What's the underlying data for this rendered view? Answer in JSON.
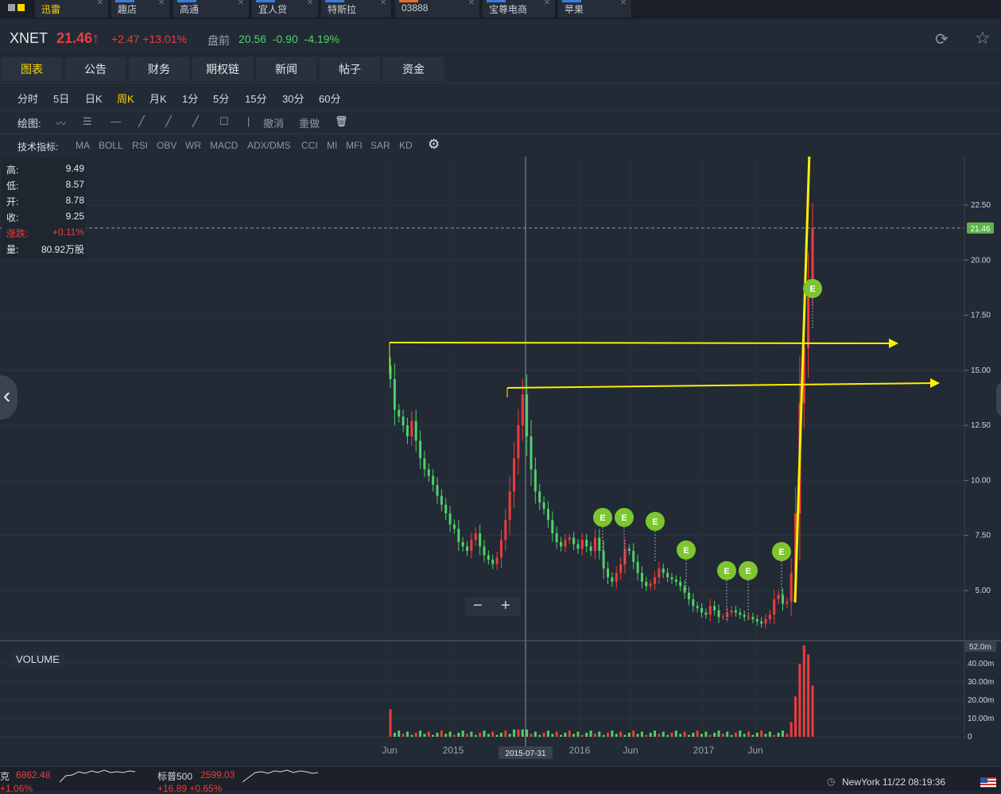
{
  "tabs": [
    {
      "label": "迅雷",
      "active": true
    },
    {
      "label": "趣店"
    },
    {
      "label": "高通"
    },
    {
      "label": "宜人贷"
    },
    {
      "label": "特斯拉"
    },
    {
      "label": "03888"
    },
    {
      "label": "宝尊电商"
    },
    {
      "label": "苹果"
    }
  ],
  "quote": {
    "symbol": "XNET",
    "price": "21.46",
    "price_arrow": "↑",
    "change": "+2.47 +13.01%",
    "premarket_label": "盘前",
    "premarket_price": "20.56",
    "premarket_change": "-0.90",
    "premarket_pct": "-4.19%"
  },
  "main_tabs": [
    "图表",
    "公告",
    "财务",
    "期权链",
    "新闻",
    "帖子",
    "资金"
  ],
  "periods": [
    "分时",
    "5日",
    "日K",
    "周K",
    "月K",
    "1分",
    "5分",
    "15分",
    "30分",
    "60分"
  ],
  "active_period": "周K",
  "draw": {
    "label": "绘图:",
    "undo": "撤消",
    "redo": "重做"
  },
  "indicators": {
    "label": "技术指标:",
    "items": [
      "MA",
      "BOLL",
      "RSI",
      "OBV",
      "WR",
      "MACD",
      "ADX/DMS",
      "CCI",
      "MI",
      "MFI",
      "SAR",
      "KD"
    ]
  },
  "info": {
    "high_label": "高:",
    "high": "9.49",
    "low_label": "低:",
    "low": "8.57",
    "open_label": "开:",
    "open": "8.78",
    "close_label": "收:",
    "close": "9.25",
    "chg_label": "涨跌:",
    "chg": "+0.11%",
    "vol_label": "量:",
    "vol": "80.92万股"
  },
  "volume_label": "VOLUME",
  "cursor_date": "2015-07-31",
  "footer": {
    "idx1_name": "克",
    "idx1_val": "6862.48",
    "idx1_chg": "+1.06%",
    "idx2_name": "标普500",
    "idx2_val": "2599.03",
    "idx2_chg": "+16.89 +0.65%",
    "clock": "NewYork 11/22 08:19:36"
  },
  "colors": {
    "up": "#ef3c3c",
    "down": "#4fd06a",
    "accent": "#ffd700",
    "bg": "#222a35",
    "earnings": "#7dc62e"
  },
  "chart_data": {
    "type": "candlestick",
    "price_axis": {
      "ticks": [
        5.0,
        7.5,
        10.0,
        12.5,
        15.0,
        17.5,
        20.0,
        22.5
      ],
      "range": [
        3.0,
        23.5
      ],
      "current": 21.46
    },
    "volume_axis": {
      "ticks": [
        "0",
        "10.00m",
        "20.00m",
        "30.00m",
        "40.00m"
      ],
      "max_label": "52.0m"
    },
    "x_labels": [
      "Jun",
      "2015",
      "2016",
      "Jun",
      "2017",
      "Jun"
    ],
    "close_series": [
      14.6,
      13.2,
      12.9,
      12.5,
      12.0,
      12.7,
      11.8,
      11.0,
      10.5,
      10.2,
      9.8,
      9.3,
      8.9,
      8.5,
      8.0,
      7.8,
      7.2,
      7.0,
      6.8,
      7.3,
      7.6,
      7.0,
      6.6,
      6.4,
      6.2,
      6.5,
      7.3,
      8.2,
      9.5,
      11.0,
      12.5,
      13.9,
      12.0,
      10.5,
      9.5,
      9.0,
      8.7,
      8.2,
      7.6,
      7.2,
      7.0,
      7.3,
      7.4,
      7.1,
      6.9,
      7.3,
      7.0,
      6.8,
      7.4,
      6.8,
      6.0,
      5.6,
      5.4,
      5.8,
      6.2,
      6.9,
      6.8,
      6.3,
      5.8,
      5.4,
      5.2,
      5.3,
      5.6,
      6.0,
      5.8,
      5.6,
      5.5,
      5.4,
      5.2,
      4.9,
      4.6,
      4.3,
      4.2,
      4.0,
      3.9,
      4.3,
      4.1,
      3.8,
      3.8,
      4.0,
      4.1,
      4.0,
      3.9,
      3.8,
      3.8,
      3.7,
      3.6,
      3.5,
      3.7,
      3.9,
      4.6,
      4.8,
      4.4,
      4.5,
      5.8,
      8.5,
      13.5,
      16.0,
      19.0,
      21.46
    ],
    "earnings_markers": 7,
    "annotations": [
      "horizontal line at ~16.2",
      "horizontal line at ~14.4",
      "vertical arrow to ~23"
    ]
  }
}
